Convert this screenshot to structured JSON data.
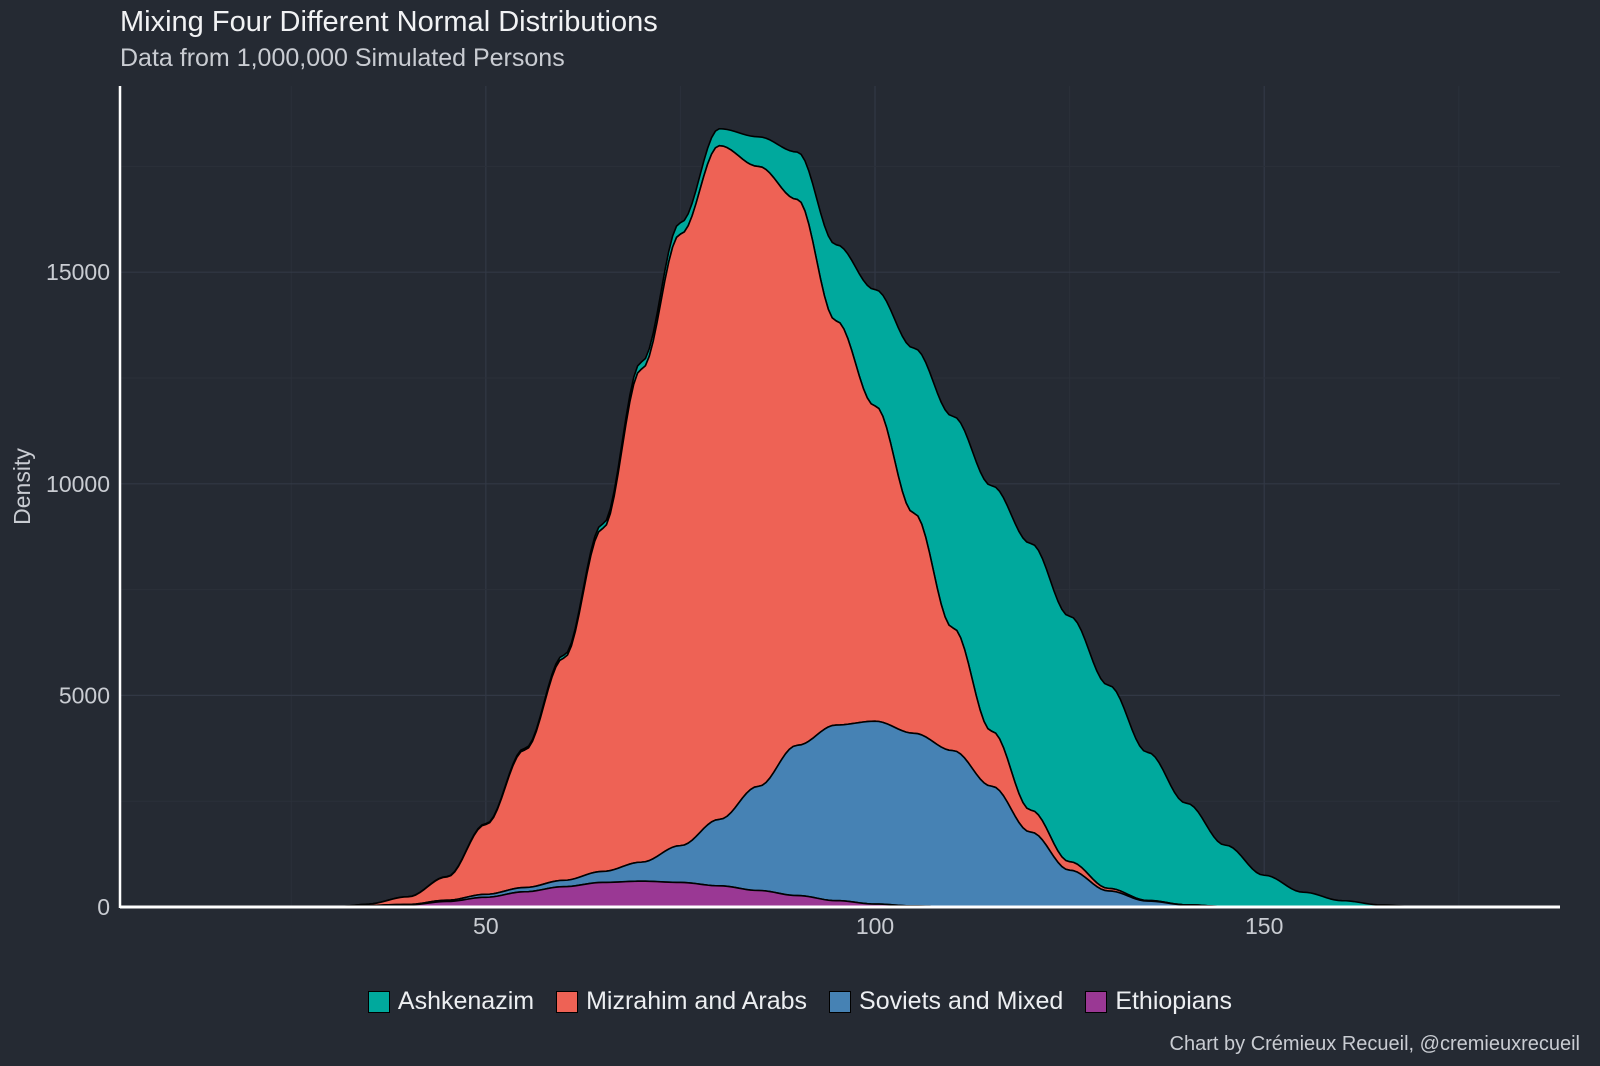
{
  "chart_data": {
    "type": "area",
    "stacked": true,
    "title": "Mixing Four Different Normal Distributions",
    "subtitle": "Data from 1,000,000 Simulated Persons",
    "xlabel": "",
    "ylabel": "Density",
    "xlim": [
      3,
      188
    ],
    "ylim": [
      0,
      19400
    ],
    "x_ticks": [
      50,
      100,
      150
    ],
    "y_ticks": [
      0,
      5000,
      10000,
      15000
    ],
    "grid": true,
    "legend_position": "bottom",
    "caption": "Chart by Crémieux Recueil, @cremieuxrecueil",
    "series": [
      {
        "name": "Ethiopians",
        "color": "#9a3894",
        "x": [
          30,
          40,
          45,
          50,
          55,
          60,
          65,
          70,
          75,
          80,
          85,
          90,
          95,
          100,
          105,
          110,
          120
        ],
        "values": [
          0,
          50,
          130,
          230,
          360,
          480,
          580,
          610,
          580,
          500,
          390,
          270,
          150,
          70,
          25,
          5,
          0
        ]
      },
      {
        "name": "Soviets and Mixed",
        "color": "#4682b4",
        "x": [
          30,
          40,
          45,
          50,
          55,
          60,
          65,
          70,
          75,
          80,
          85,
          90,
          95,
          100,
          105,
          110,
          115,
          120,
          125,
          130,
          135,
          140,
          145,
          150
        ],
        "values": [
          0,
          10,
          30,
          70,
          100,
          150,
          260,
          450,
          870,
          1570,
          2460,
          3550,
          4150,
          4320,
          4080,
          3690,
          2850,
          1770,
          870,
          380,
          140,
          50,
          12,
          0
        ]
      },
      {
        "name": "Mizrahim and Arabs",
        "color": "#ee6255",
        "x": [
          30,
          35,
          40,
          45,
          50,
          55,
          60,
          65,
          70,
          75,
          80,
          85,
          90,
          95,
          100,
          105,
          110,
          115,
          120,
          125,
          130,
          135,
          140,
          145
        ],
        "values": [
          0,
          40,
          180,
          550,
          1650,
          3250,
          5250,
          8100,
          11650,
          14450,
          15920,
          14650,
          12900,
          9550,
          7450,
          5200,
          2900,
          1300,
          520,
          200,
          60,
          15,
          3,
          0
        ]
      },
      {
        "name": "Ashkenazim",
        "color": "#00a99d",
        "x": [
          30,
          35,
          40,
          45,
          50,
          55,
          60,
          65,
          70,
          75,
          80,
          85,
          90,
          95,
          100,
          105,
          110,
          115,
          120,
          125,
          130,
          135,
          140,
          145,
          150,
          155,
          160,
          165,
          170
        ],
        "values": [
          0,
          0,
          5,
          10,
          20,
          40,
          70,
          110,
          170,
          270,
          400,
          700,
          1120,
          1800,
          2750,
          3900,
          5000,
          5800,
          6300,
          5800,
          4800,
          3500,
          2400,
          1450,
          750,
          350,
          150,
          50,
          0
        ]
      }
    ]
  },
  "legend": {
    "items": [
      {
        "label": "Ashkenazim",
        "color": "#00a99d"
      },
      {
        "label": "Mizrahim and Arabs",
        "color": "#ee6255"
      },
      {
        "label": "Soviets and Mixed",
        "color": "#4682b4"
      },
      {
        "label": "Ethiopians",
        "color": "#9a3894"
      }
    ]
  }
}
